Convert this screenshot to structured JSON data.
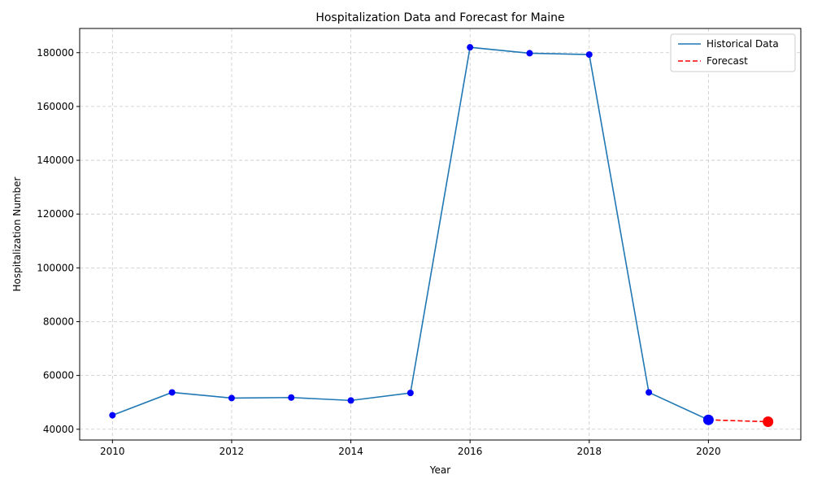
{
  "chart_data": {
    "type": "line",
    "title": "Hospitalization Data and Forecast for Maine",
    "xlabel": "Year",
    "ylabel": "Hospitalization Number",
    "xlim": [
      2009.45,
      2021.55
    ],
    "ylim": [
      36000,
      189000
    ],
    "x_ticks": [
      2010,
      2012,
      2014,
      2016,
      2018,
      2020
    ],
    "y_ticks": [
      40000,
      60000,
      80000,
      100000,
      120000,
      140000,
      160000,
      180000
    ],
    "grid": true,
    "legend_position": "top-right",
    "series": [
      {
        "name": "Historical Data",
        "style": "solid",
        "color": "#1f77b4",
        "marker_color": "#0000ff",
        "x": [
          2010,
          2011,
          2012,
          2013,
          2014,
          2015,
          2016,
          2017,
          2018,
          2019,
          2020
        ],
        "y": [
          45200,
          53700,
          51600,
          51800,
          50700,
          53500,
          182000,
          179800,
          179300,
          53700,
          43500
        ]
      },
      {
        "name": "Forecast",
        "style": "dashed",
        "color": "#ff0000",
        "marker_color": "#ff0000",
        "x": [
          2020,
          2021
        ],
        "y": [
          43500,
          42800
        ]
      }
    ]
  }
}
